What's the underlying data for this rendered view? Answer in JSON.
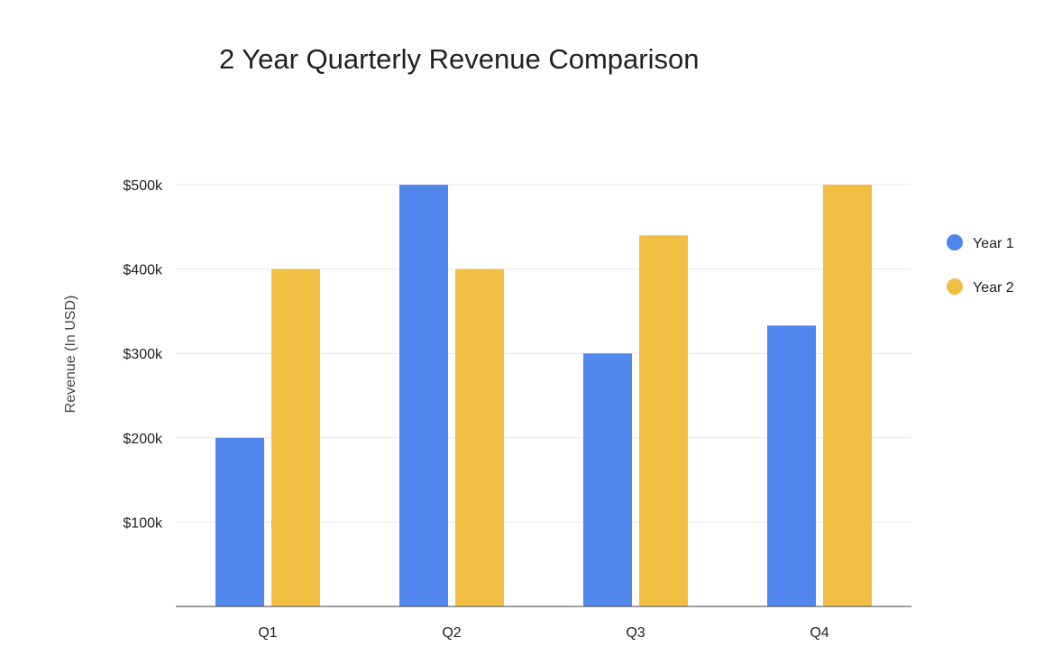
{
  "chart_data": {
    "type": "bar",
    "title": "2 Year Quarterly Revenue Comparison",
    "xlabel": "",
    "ylabel": "Revenue (In USD)",
    "categories": [
      "Q1",
      "Q2",
      "Q3",
      "Q4"
    ],
    "series": [
      {
        "name": "Year 1",
        "color": "#5186EC",
        "values": [
          200000,
          500000,
          300000,
          333000
        ]
      },
      {
        "name": "Year 2",
        "color": "#F1BE42",
        "values": [
          400000,
          400000,
          440000,
          500000
        ]
      }
    ],
    "ylim": [
      0,
      500000
    ],
    "yticks": [
      {
        "value": 100000,
        "label": "$100k"
      },
      {
        "value": 200000,
        "label": "$200k"
      },
      {
        "value": 300000,
        "label": "$300k"
      },
      {
        "value": 400000,
        "label": "$400k"
      },
      {
        "value": 500000,
        "label": "$500k"
      }
    ],
    "grid": true,
    "legend": "right"
  }
}
